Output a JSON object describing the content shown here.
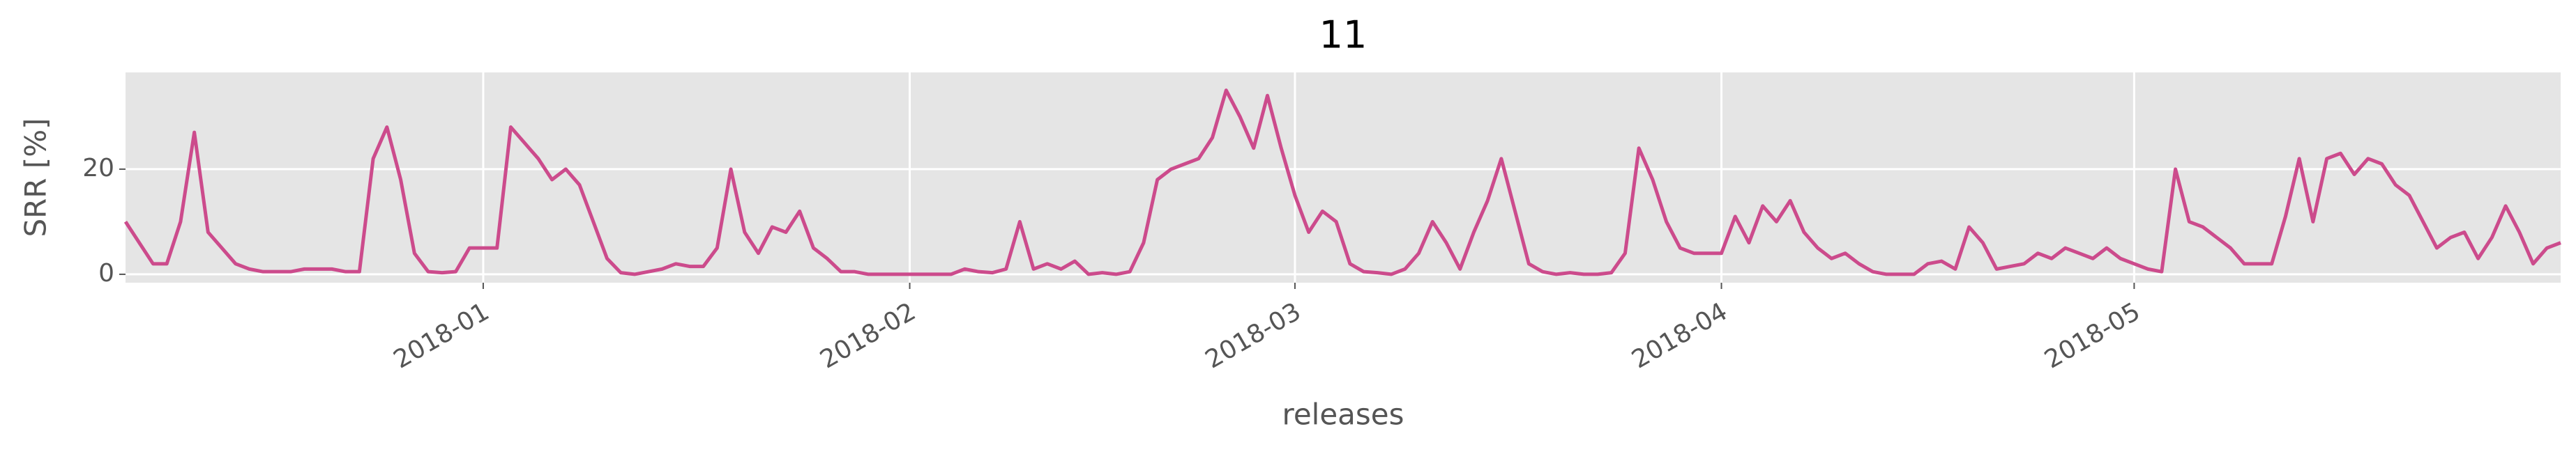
{
  "chart_data": {
    "type": "line",
    "title": "11",
    "y_label": "SRR [%]",
    "x_label": "releases",
    "x": [
      -26,
      -25,
      -24,
      -23,
      -22,
      -21,
      -20,
      -19,
      -18,
      -17,
      -16,
      -15,
      -14,
      -13,
      -12,
      -11,
      -10,
      -9,
      -8,
      -7,
      -6,
      -5,
      -4,
      -3,
      -2,
      -1,
      0,
      1,
      2,
      3,
      4,
      5,
      6,
      7,
      8,
      9,
      10,
      11,
      12,
      13,
      14,
      15,
      16,
      17,
      18,
      19,
      20,
      21,
      22,
      23,
      24,
      25,
      26,
      27,
      28,
      29,
      30,
      31,
      32,
      33,
      34,
      35,
      36,
      37,
      38,
      39,
      40,
      41,
      42,
      43,
      44,
      45,
      46,
      47,
      48,
      49,
      50,
      51,
      52,
      53,
      54,
      55,
      56,
      57,
      58,
      59,
      60,
      61,
      62,
      63,
      64,
      65,
      66,
      67,
      68,
      69,
      70,
      71,
      72,
      73,
      74,
      75,
      76,
      77,
      78,
      79,
      80,
      81,
      82,
      83,
      84,
      85,
      86,
      87,
      88,
      89,
      90,
      91,
      92,
      93,
      94,
      95,
      96,
      97,
      98,
      99,
      100,
      101,
      102,
      103,
      104,
      105,
      106,
      107,
      108,
      109,
      110,
      111,
      112,
      113,
      114,
      115,
      116,
      117,
      118,
      119,
      120,
      121,
      122,
      123,
      124,
      125,
      126,
      127,
      128,
      129,
      130,
      131,
      132,
      133,
      134,
      135,
      136,
      137,
      138,
      139,
      140,
      141,
      142,
      143,
      144,
      145,
      146,
      147,
      148,
      149,
      150,
      151
    ],
    "series": [
      {
        "name": "SRR",
        "color": "#cc4b8c",
        "values": [
          10,
          6,
          2,
          2,
          10,
          27,
          8,
          5,
          2,
          1,
          0.5,
          0.5,
          0.5,
          1,
          1,
          1,
          0.5,
          0.5,
          22,
          28,
          18,
          4,
          0.5,
          0.3,
          0.5,
          5,
          5,
          5,
          28,
          25,
          22,
          18,
          20,
          17,
          10,
          3,
          0.3,
          0,
          0.5,
          1,
          2,
          1.5,
          1.5,
          5,
          20,
          8,
          4,
          9,
          8,
          12,
          5,
          3,
          0.5,
          0.5,
          0,
          0,
          0,
          0,
          0,
          0,
          0,
          1,
          0.5,
          0.3,
          1,
          10,
          1,
          2,
          1,
          2.5,
          0,
          0.3,
          0,
          0.5,
          6,
          18,
          20,
          21,
          22,
          26,
          35,
          30,
          24,
          34,
          24,
          15,
          8,
          12,
          10,
          2,
          0.5,
          0.3,
          0,
          1,
          4,
          10,
          6,
          1,
          8,
          14,
          22,
          12,
          2,
          0.5,
          0,
          0.3,
          0,
          0,
          0.3,
          4,
          24,
          18,
          10,
          5,
          4,
          4,
          4,
          11,
          6,
          13,
          10,
          14,
          8,
          5,
          3,
          4,
          2,
          0.5,
          0,
          0,
          0,
          2,
          2.5,
          1,
          9,
          6,
          1,
          1.5,
          2,
          4,
          3,
          5,
          4,
          3,
          5,
          3,
          2,
          1,
          0.5,
          20,
          10,
          9,
          7,
          5,
          2,
          2,
          2,
          11,
          22,
          10,
          22,
          23,
          19,
          22,
          21,
          17,
          15,
          10,
          5,
          7,
          8,
          3,
          7,
          13,
          8,
          2,
          5,
          6
        ]
      }
    ],
    "xlim": [
      -26,
      151
    ],
    "xticks": [
      {
        "value": 0,
        "label": "2018-01"
      },
      {
        "value": 31,
        "label": "2018-02"
      },
      {
        "value": 59,
        "label": "2018-03"
      },
      {
        "value": 90,
        "label": "2018-04"
      },
      {
        "value": 120,
        "label": "2018-05"
      }
    ],
    "ylim": [
      -1.6,
      38.4
    ],
    "yticks": [
      0,
      20
    ],
    "grid": true
  }
}
